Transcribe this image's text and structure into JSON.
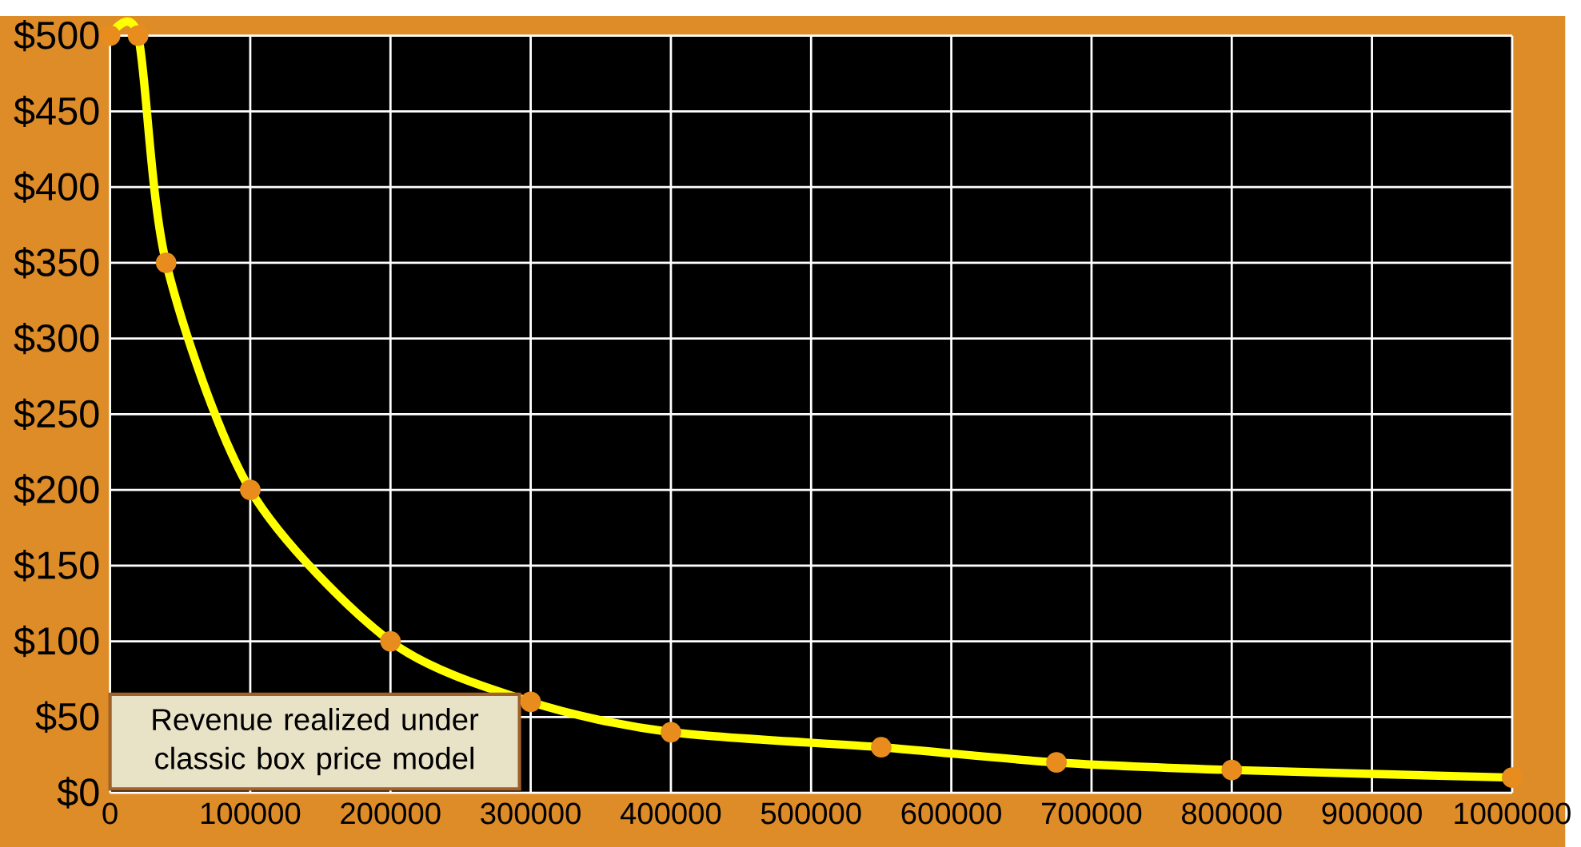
{
  "chart_data": {
    "type": "line",
    "x": [
      0,
      20000,
      40000,
      100000,
      200000,
      300000,
      400000,
      550000,
      675000,
      800000,
      1000000
    ],
    "series": [
      {
        "color": "#ffff00",
        "values": [
          500,
          500,
          350,
          200,
          100,
          60,
          40,
          30,
          20,
          15,
          10
        ]
      }
    ],
    "marker": "circle",
    "line_style": "solid",
    "grid": true,
    "xlim": [
      0,
      1000000
    ],
    "ylim": [
      0,
      500
    ],
    "xticks": [
      0,
      100000,
      200000,
      300000,
      400000,
      500000,
      600000,
      700000,
      800000,
      900000,
      1000000
    ],
    "yticks": [
      {
        "value": 0,
        "label": "$0"
      },
      {
        "value": 50,
        "label": "$50"
      },
      {
        "value": 100,
        "label": "$100"
      },
      {
        "value": 150,
        "label": "$150"
      },
      {
        "value": 200,
        "label": "$200"
      },
      {
        "value": 250,
        "label": "$250"
      },
      {
        "value": 300,
        "label": "$300"
      },
      {
        "value": 350,
        "label": "$350"
      },
      {
        "value": 400,
        "label": "$400"
      },
      {
        "value": 450,
        "label": "$450"
      },
      {
        "value": 500,
        "label": "$500"
      }
    ],
    "annotations": [
      "Revenue realized under classic box price model"
    ]
  }
}
